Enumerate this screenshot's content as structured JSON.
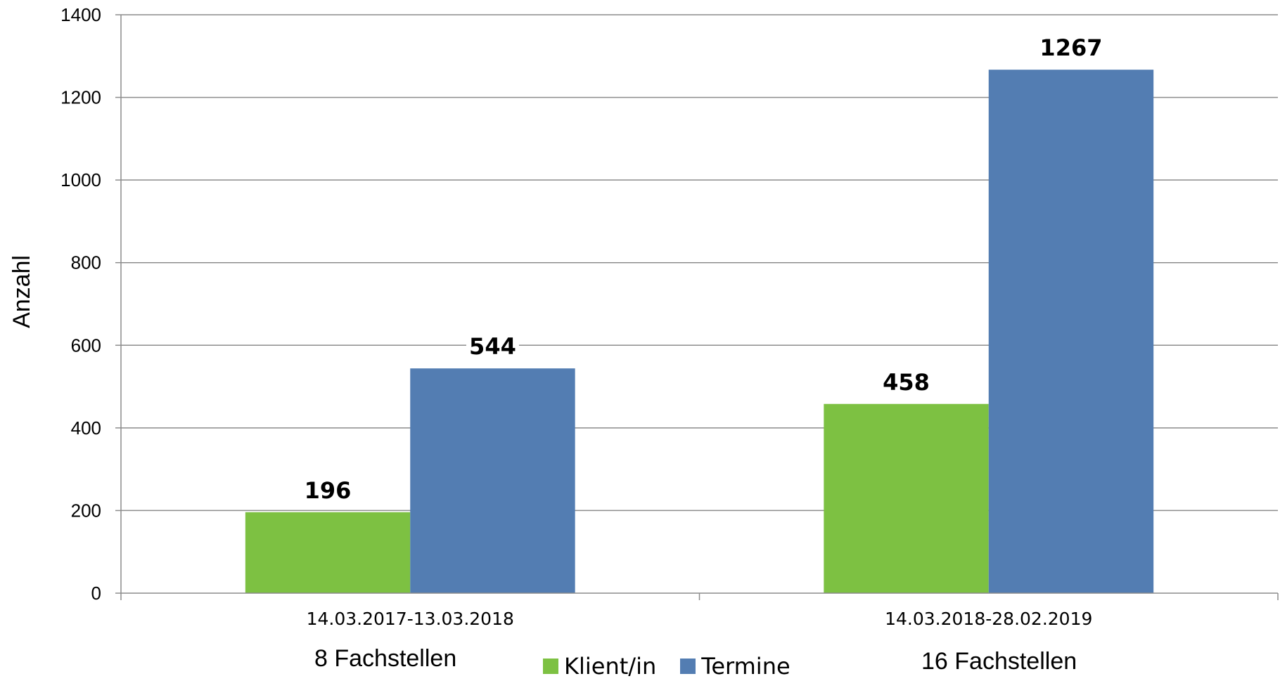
{
  "chart_data": {
    "type": "bar",
    "title": "",
    "xlabel": "",
    "ylabel": "Anzahl",
    "ylim": [
      0,
      1400
    ],
    "yticks": [
      0,
      200,
      400,
      600,
      800,
      1000,
      1200,
      1400
    ],
    "grid": true,
    "categories": [
      "14.03.2017-13.03.2018",
      "14.03.2018-28.02.2019"
    ],
    "category_sublabels": [
      "8 Fachstellen",
      "16 Fachstellen"
    ],
    "series": [
      {
        "name": "Klient/in",
        "color": "#7dc142",
        "values": [
          196,
          458
        ]
      },
      {
        "name": "Termine",
        "color": "#537db2",
        "values": [
          544,
          1267
        ]
      }
    ],
    "data_labels": true,
    "legend_position": "bottom"
  }
}
